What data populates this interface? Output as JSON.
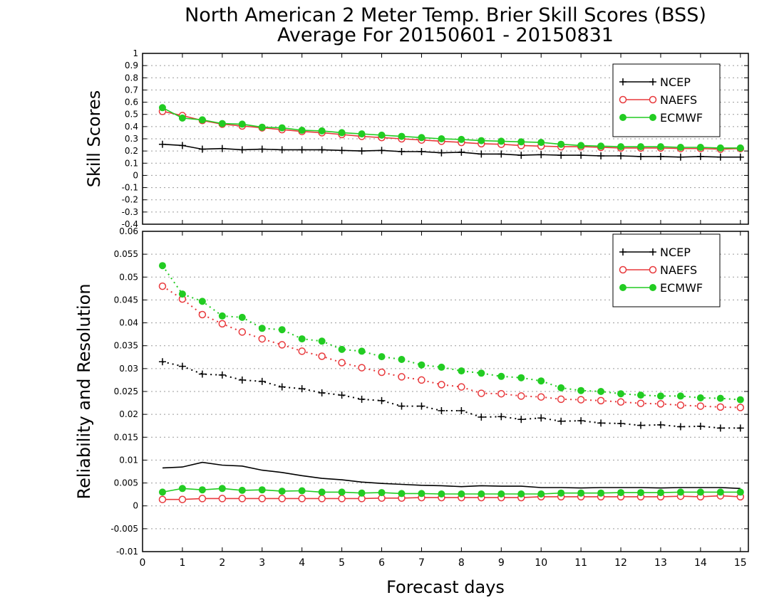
{
  "title_line1": "North American 2 Meter Temp. Brier Skill Scores (BSS)",
  "title_line2": "Average For 20150601 - 20150831",
  "colors": {
    "ncep": "#000000",
    "naefs": "#e8393c",
    "ecmwf": "#22cc22",
    "grid": "#9a9a9a"
  },
  "chart_data": [
    {
      "type": "line",
      "ylabel": "Skill Scores",
      "xlabel": "",
      "xlim": [
        0,
        15.2
      ],
      "ylim": [
        -0.4,
        1
      ],
      "y_ticks": [
        "-0.4",
        "-0.3",
        "-0.2",
        "-0.1",
        "0",
        "0.1",
        "0.2",
        "0.3",
        "0.4",
        "0.5",
        "0.6",
        "0.7",
        "0.8",
        "0.9",
        "1"
      ],
      "x_ticks": [
        "0",
        "1",
        "2",
        "3",
        "4",
        "5",
        "6",
        "7",
        "8",
        "9",
        "10",
        "11",
        "12",
        "13",
        "14",
        "15"
      ],
      "grid": "horizontal dotted",
      "legend_position": "top-right",
      "legend": [
        "NCEP",
        "NAEFS",
        "ECMWF"
      ],
      "x": [
        0.5,
        1,
        1.5,
        2,
        2.5,
        3,
        3.5,
        4,
        4.5,
        5,
        5.5,
        6,
        6.5,
        7,
        7.5,
        8,
        8.5,
        9,
        9.5,
        10,
        10.5,
        11,
        11.5,
        12,
        12.5,
        13,
        13.5,
        14,
        14.5,
        15
      ],
      "series": [
        {
          "name": "NCEP",
          "style": "solid",
          "marker": "plus",
          "color": "#000000",
          "values": [
            0.255,
            0.245,
            0.215,
            0.22,
            0.21,
            0.215,
            0.21,
            0.21,
            0.21,
            0.205,
            0.2,
            0.205,
            0.195,
            0.195,
            0.185,
            0.19,
            0.175,
            0.175,
            0.165,
            0.17,
            0.165,
            0.165,
            0.16,
            0.16,
            0.155,
            0.155,
            0.15,
            0.155,
            0.15,
            0.15
          ]
        },
        {
          "name": "NAEFS",
          "style": "solid",
          "marker": "open-circle",
          "color": "#e8393c",
          "values": [
            0.525,
            0.49,
            0.45,
            0.42,
            0.405,
            0.39,
            0.375,
            0.36,
            0.35,
            0.335,
            0.32,
            0.31,
            0.3,
            0.29,
            0.28,
            0.27,
            0.26,
            0.255,
            0.245,
            0.24,
            0.235,
            0.235,
            0.23,
            0.225,
            0.225,
            0.225,
            0.22,
            0.22,
            0.215,
            0.22
          ]
        },
        {
          "name": "ECMWF",
          "style": "solid",
          "marker": "filled-circle",
          "color": "#22cc22",
          "values": [
            0.555,
            0.47,
            0.455,
            0.425,
            0.42,
            0.395,
            0.39,
            0.37,
            0.365,
            0.35,
            0.34,
            0.33,
            0.32,
            0.31,
            0.3,
            0.295,
            0.285,
            0.28,
            0.275,
            0.27,
            0.255,
            0.245,
            0.24,
            0.235,
            0.235,
            0.235,
            0.23,
            0.23,
            0.225,
            0.225
          ]
        }
      ]
    },
    {
      "type": "line",
      "ylabel": "Reliability and Resolution",
      "xlabel": "Forecast days",
      "xlim": [
        0,
        15.2
      ],
      "ylim": [
        -0.01,
        0.06
      ],
      "y_ticks": [
        "-0.01",
        "-0.005",
        "0",
        "0.005",
        "0.01",
        "0.015",
        "0.02",
        "0.025",
        "0.03",
        "0.035",
        "0.04",
        "0.045",
        "0.05",
        "0.055",
        "0.06"
      ],
      "x_ticks": [
        "0",
        "1",
        "2",
        "3",
        "4",
        "5",
        "6",
        "7",
        "8",
        "9",
        "10",
        "11",
        "12",
        "13",
        "14",
        "15"
      ],
      "grid": "horizontal dotted",
      "legend_position": "top-right",
      "legend": [
        "NCEP",
        "NAEFS",
        "ECMWF"
      ],
      "x": [
        0.5,
        1,
        1.5,
        2,
        2.5,
        3,
        3.5,
        4,
        4.5,
        5,
        5.5,
        6,
        6.5,
        7,
        7.5,
        8,
        8.5,
        9,
        9.5,
        10,
        10.5,
        11,
        11.5,
        12,
        12.5,
        13,
        13.5,
        14,
        14.5,
        15
      ],
      "series": [
        {
          "name": "NCEP",
          "group": "resolution",
          "style": "dotted",
          "marker": "plus",
          "color": "#000000",
          "values": [
            0.0315,
            0.0305,
            0.0288,
            0.0286,
            0.0275,
            0.0272,
            0.026,
            0.0256,
            0.0247,
            0.0242,
            0.0233,
            0.023,
            0.0218,
            0.0218,
            0.0208,
            0.0208,
            0.0194,
            0.0195,
            0.0189,
            0.0192,
            0.0185,
            0.0186,
            0.0181,
            0.018,
            0.0176,
            0.0177,
            0.0173,
            0.0174,
            0.017,
            0.017
          ]
        },
        {
          "name": "NAEFS",
          "group": "resolution",
          "style": "dotted",
          "marker": "open-circle",
          "color": "#e8393c",
          "values": [
            0.048,
            0.0452,
            0.0418,
            0.0398,
            0.038,
            0.0365,
            0.0352,
            0.0338,
            0.0327,
            0.0313,
            0.0302,
            0.0292,
            0.0282,
            0.0275,
            0.0265,
            0.026,
            0.0246,
            0.0245,
            0.024,
            0.0238,
            0.0233,
            0.0232,
            0.023,
            0.0227,
            0.0224,
            0.0223,
            0.022,
            0.0218,
            0.0216,
            0.0215
          ]
        },
        {
          "name": "ECMWF",
          "group": "resolution",
          "style": "dotted",
          "marker": "filled-circle",
          "color": "#22cc22",
          "values": [
            0.0525,
            0.0463,
            0.0447,
            0.0415,
            0.0412,
            0.0388,
            0.0385,
            0.0365,
            0.036,
            0.0342,
            0.0338,
            0.0326,
            0.032,
            0.0308,
            0.0303,
            0.0295,
            0.029,
            0.0283,
            0.028,
            0.0273,
            0.0258,
            0.0252,
            0.025,
            0.0245,
            0.0242,
            0.024,
            0.024,
            0.0236,
            0.0235,
            0.0232
          ]
        },
        {
          "name": "NCEP",
          "group": "reliability",
          "style": "solid",
          "marker": "none",
          "color": "#000000",
          "values": [
            0.0083,
            0.0085,
            0.0095,
            0.0089,
            0.0087,
            0.0078,
            0.0073,
            0.0066,
            0.006,
            0.0057,
            0.0052,
            0.0049,
            0.0047,
            0.0045,
            0.0044,
            0.0042,
            0.0044,
            0.0043,
            0.0043,
            0.004,
            0.004,
            0.0039,
            0.004,
            0.004,
            0.004,
            0.0039,
            0.004,
            0.004,
            0.004,
            0.0038
          ]
        },
        {
          "name": "NAEFS",
          "group": "reliability",
          "style": "solid",
          "marker": "open-circle",
          "color": "#e8393c",
          "values": [
            0.0014,
            0.0014,
            0.0016,
            0.0016,
            0.0016,
            0.0016,
            0.0016,
            0.0016,
            0.0016,
            0.0016,
            0.0016,
            0.0017,
            0.0017,
            0.0018,
            0.0018,
            0.0018,
            0.0018,
            0.0018,
            0.0018,
            0.002,
            0.002,
            0.002,
            0.002,
            0.002,
            0.002,
            0.002,
            0.0021,
            0.002,
            0.0022,
            0.002
          ]
        },
        {
          "name": "ECMWF",
          "group": "reliability",
          "style": "solid",
          "marker": "filled-circle",
          "color": "#22cc22",
          "values": [
            0.003,
            0.0038,
            0.0035,
            0.0038,
            0.0034,
            0.0035,
            0.0032,
            0.0033,
            0.003,
            0.003,
            0.0028,
            0.0029,
            0.0027,
            0.0027,
            0.0026,
            0.0026,
            0.0026,
            0.0026,
            0.0026,
            0.0026,
            0.0028,
            0.0028,
            0.0028,
            0.0029,
            0.0029,
            0.0029,
            0.003,
            0.003,
            0.003,
            0.003
          ]
        }
      ]
    }
  ]
}
